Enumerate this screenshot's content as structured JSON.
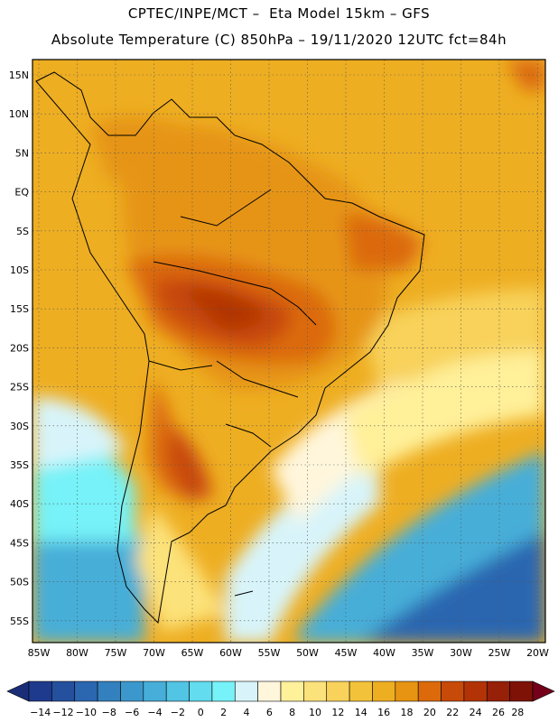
{
  "header": {
    "line1": "CPTEC/INPE/MCT –  Eta Model 15km – GFS",
    "line2": "Absolute Temperature (C) 850hPa – 19/11/2020 12UTC fct=84h"
  },
  "axes": {
    "lat_labels": [
      "15N",
      "10N",
      "5N",
      "EQ",
      "5S",
      "10S",
      "15S",
      "20S",
      "25S",
      "30S",
      "35S",
      "40S",
      "45S",
      "50S",
      "55S"
    ],
    "lon_labels": [
      "85W",
      "80W",
      "75W",
      "70W",
      "65W",
      "60W",
      "55W",
      "50W",
      "45W",
      "40W",
      "35W",
      "30W",
      "25W",
      "20W"
    ]
  },
  "colorbar": {
    "labels": [
      "-14",
      "-12",
      "-10",
      "-8",
      "-6",
      "-4",
      "-2",
      "0",
      "2",
      "4",
      "6",
      "8",
      "10",
      "12",
      "14",
      "16",
      "18",
      "20",
      "22",
      "24",
      "26",
      "28"
    ],
    "colors": [
      "#1e3a8c",
      "#24509e",
      "#2b66b0",
      "#3380be",
      "#3c98cc",
      "#46aed8",
      "#52c4e4",
      "#62dcee",
      "#76f2f8",
      "#d8f4fa",
      "#fff6dc",
      "#fff09a",
      "#fce27a",
      "#f8d25a",
      "#f2c23a",
      "#eeae22",
      "#e69412",
      "#dc6a0a",
      "#c84a08",
      "#b23406",
      "#962008",
      "#7e1206"
    ],
    "arrow_low": "#1a2e78",
    "arrow_high": "#74001a"
  }
}
